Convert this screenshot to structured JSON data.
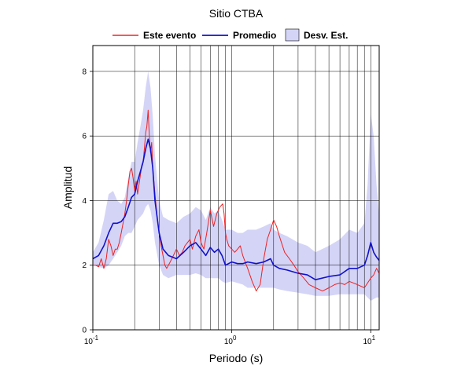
{
  "chart_data": {
    "type": "line",
    "title": "Sitio CTBA",
    "xlabel": "Periodo (s)",
    "ylabel": "Amplitud",
    "xscale": "log",
    "xlim": [
      0.1,
      11.5
    ],
    "ylim": [
      0,
      8.8
    ],
    "grid": true,
    "legend_position": "top-center",
    "x_ticks": [
      {
        "value": 0.1,
        "base": "10",
        "exp": "-1"
      },
      {
        "value": 1,
        "base": "10",
        "exp": "0"
      },
      {
        "value": 10,
        "base": "10",
        "exp": "1"
      }
    ],
    "y_ticks": [
      0,
      2,
      4,
      6,
      8
    ],
    "legend": {
      "este": "Este evento",
      "promedio": "Promedio",
      "desv": "Desv. Est."
    },
    "colors": {
      "este": "#ee2222",
      "promedio": "#1111cc",
      "desv": "#d4d4f7"
    },
    "series": [
      {
        "name": "Este evento",
        "x": [
          0.1,
          0.105,
          0.11,
          0.115,
          0.12,
          0.125,
          0.13,
          0.135,
          0.14,
          0.145,
          0.15,
          0.155,
          0.16,
          0.165,
          0.17,
          0.175,
          0.18,
          0.185,
          0.19,
          0.195,
          0.2,
          0.205,
          0.21,
          0.215,
          0.22,
          0.225,
          0.23,
          0.235,
          0.24,
          0.245,
          0.25,
          0.255,
          0.26,
          0.265,
          0.27,
          0.28,
          0.29,
          0.3,
          0.31,
          0.32,
          0.33,
          0.34,
          0.36,
          0.38,
          0.4,
          0.42,
          0.44,
          0.46,
          0.48,
          0.5,
          0.52,
          0.55,
          0.58,
          0.6,
          0.63,
          0.66,
          0.7,
          0.74,
          0.78,
          0.82,
          0.86,
          0.88,
          0.9,
          0.92,
          0.95,
          1.0,
          1.05,
          1.1,
          1.15,
          1.2,
          1.3,
          1.4,
          1.5,
          1.6,
          1.7,
          1.8,
          1.9,
          2.0,
          2.1,
          2.2,
          2.4,
          2.6,
          2.8,
          3.0,
          3.3,
          3.6,
          4.0,
          4.5,
          5.0,
          5.5,
          6.0,
          6.5,
          7.0,
          8.0,
          9.0,
          10.0,
          10.5,
          11.0,
          11.5
        ],
        "values": [
          2.0,
          2.0,
          1.95,
          2.2,
          1.9,
          2.2,
          2.8,
          2.6,
          2.3,
          2.5,
          2.5,
          2.7,
          3.0,
          3.3,
          3.6,
          4.0,
          4.5,
          4.9,
          5.0,
          4.7,
          4.3,
          4.6,
          4.2,
          4.5,
          4.8,
          5.1,
          5.2,
          5.6,
          6.1,
          6.3,
          6.8,
          6.0,
          5.5,
          5.8,
          5.0,
          4.2,
          3.5,
          3.0,
          2.6,
          2.3,
          2.0,
          1.9,
          2.1,
          2.3,
          2.5,
          2.3,
          2.4,
          2.6,
          2.7,
          2.8,
          2.5,
          2.9,
          3.1,
          2.7,
          2.5,
          3.0,
          3.7,
          3.2,
          3.6,
          3.8,
          3.9,
          3.6,
          3.0,
          2.8,
          2.6,
          2.5,
          2.4,
          2.5,
          2.6,
          2.3,
          1.9,
          1.5,
          1.2,
          1.4,
          2.2,
          2.8,
          3.1,
          3.4,
          3.2,
          2.9,
          2.4,
          2.2,
          2.0,
          1.8,
          1.6,
          1.4,
          1.3,
          1.2,
          1.3,
          1.4,
          1.45,
          1.4,
          1.5,
          1.4,
          1.3,
          1.6,
          1.7,
          1.9,
          1.75
        ]
      },
      {
        "name": "Promedio",
        "x": [
          0.1,
          0.11,
          0.12,
          0.13,
          0.14,
          0.15,
          0.16,
          0.17,
          0.18,
          0.19,
          0.2,
          0.21,
          0.22,
          0.23,
          0.24,
          0.25,
          0.26,
          0.27,
          0.28,
          0.3,
          0.32,
          0.35,
          0.4,
          0.45,
          0.5,
          0.55,
          0.6,
          0.65,
          0.7,
          0.75,
          0.8,
          0.85,
          0.9,
          1.0,
          1.1,
          1.2,
          1.3,
          1.5,
          1.7,
          1.9,
          2.0,
          2.2,
          2.5,
          3.0,
          3.5,
          4.0,
          5.0,
          6.0,
          7.0,
          8.0,
          9.0,
          9.5,
          10.0,
          10.5,
          11.0,
          11.5
        ],
        "values": [
          2.2,
          2.3,
          2.6,
          3.0,
          3.3,
          3.3,
          3.35,
          3.5,
          3.8,
          4.1,
          4.2,
          4.6,
          4.9,
          5.2,
          5.6,
          5.9,
          5.6,
          5.0,
          4.0,
          3.0,
          2.5,
          2.3,
          2.2,
          2.4,
          2.6,
          2.7,
          2.5,
          2.3,
          2.55,
          2.4,
          2.5,
          2.3,
          2.0,
          2.1,
          2.05,
          2.05,
          2.1,
          2.05,
          2.1,
          2.2,
          2.0,
          1.9,
          1.85,
          1.75,
          1.7,
          1.55,
          1.65,
          1.7,
          1.9,
          1.9,
          2.0,
          2.3,
          2.7,
          2.4,
          2.25,
          2.15
        ]
      }
    ],
    "band": {
      "name": "Desv. Est.",
      "x": [
        0.1,
        0.11,
        0.12,
        0.13,
        0.14,
        0.15,
        0.16,
        0.17,
        0.18,
        0.19,
        0.2,
        0.21,
        0.22,
        0.23,
        0.24,
        0.25,
        0.26,
        0.27,
        0.28,
        0.3,
        0.32,
        0.35,
        0.4,
        0.45,
        0.5,
        0.55,
        0.6,
        0.65,
        0.7,
        0.75,
        0.8,
        0.85,
        0.9,
        1.0,
        1.1,
        1.2,
        1.3,
        1.5,
        1.7,
        1.9,
        2.0,
        2.2,
        2.5,
        3.0,
        3.5,
        4.0,
        5.0,
        6.0,
        7.0,
        8.0,
        9.0,
        9.5,
        10.0,
        10.5,
        11.0,
        11.5
      ],
      "upper": [
        2.4,
        2.7,
        3.4,
        4.2,
        4.3,
        4.0,
        3.9,
        4.1,
        4.7,
        5.2,
        5.2,
        5.8,
        6.3,
        6.8,
        7.5,
        8.0,
        7.5,
        6.6,
        5.4,
        4.0,
        3.5,
        3.4,
        3.3,
        3.5,
        3.6,
        3.8,
        3.7,
        3.4,
        3.8,
        3.6,
        3.7,
        3.4,
        3.1,
        3.1,
        3.0,
        3.0,
        3.1,
        3.1,
        3.2,
        3.3,
        3.1,
        3.0,
        2.9,
        2.7,
        2.6,
        2.4,
        2.6,
        2.8,
        3.1,
        3.0,
        3.3,
        4.5,
        6.7,
        6.0,
        4.5,
        3.5
      ],
      "lower": [
        2.0,
        1.95,
        1.9,
        2.0,
        2.2,
        2.4,
        2.6,
        2.9,
        3.0,
        3.0,
        3.2,
        3.4,
        3.5,
        3.6,
        3.8,
        3.9,
        3.7,
        3.3,
        2.7,
        2.0,
        1.7,
        1.6,
        1.7,
        1.7,
        1.7,
        1.75,
        1.7,
        1.6,
        1.6,
        1.6,
        1.6,
        1.5,
        1.45,
        1.5,
        1.45,
        1.4,
        1.3,
        1.3,
        1.3,
        1.3,
        1.3,
        1.25,
        1.2,
        1.15,
        1.1,
        1.05,
        1.05,
        1.1,
        1.1,
        1.1,
        1.1,
        1.0,
        0.9,
        0.95,
        1.0,
        1.0
      ]
    }
  }
}
